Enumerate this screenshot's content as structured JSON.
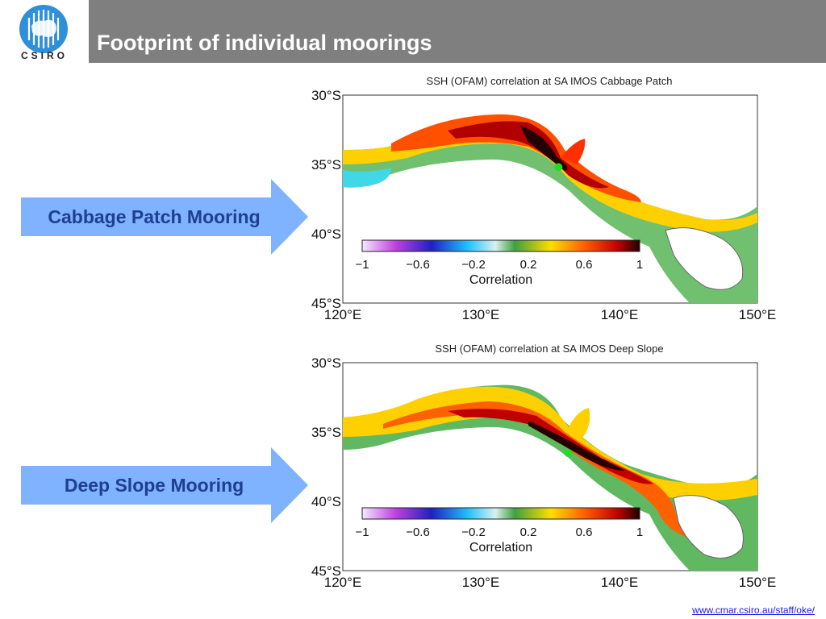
{
  "logo": {
    "text": "CSIRO"
  },
  "header": {
    "title": "Footprint of individual moorings"
  },
  "callouts": [
    {
      "label": "Cabbage Patch Mooring"
    },
    {
      "label": "Deep Slope Mooring"
    }
  ],
  "maps": [
    {
      "title": "SSH (OFAM) correlation at SA IMOS Cabbage Patch",
      "lat_ticks": [
        "30°S",
        "35°S",
        "40°S",
        "45°S"
      ],
      "lon_ticks": [
        "120°E",
        "130°E",
        "140°E",
        "150°E"
      ],
      "colorbar": {
        "ticks": [
          "−1",
          "−0.6",
          "−0.2",
          "0.2",
          "0.6",
          "1"
        ],
        "label": "Correlation"
      },
      "mooring": {
        "lon": 135.6,
        "lat": -35.2
      }
    },
    {
      "title": "SSH (OFAM) correlation at SA IMOS Deep Slope",
      "lat_ticks": [
        "30°S",
        "35°S",
        "40°S",
        "45°S"
      ],
      "lon_ticks": [
        "120°E",
        "130°E",
        "140°E",
        "150°E"
      ],
      "colorbar": {
        "ticks": [
          "−1",
          "−0.6",
          "−0.2",
          "0.2",
          "0.6",
          "1"
        ],
        "label": "Correlation"
      },
      "mooring": {
        "lon": 136.3,
        "lat": -36.5
      }
    }
  ],
  "colors": {
    "header": "#7f7f7f",
    "callout": "#7fb2ff",
    "callout_text": "#1f3f8f",
    "mooring": "#22dd22"
  },
  "footer": {
    "link": "www.cmar.csiro.au/staff/oke/"
  }
}
